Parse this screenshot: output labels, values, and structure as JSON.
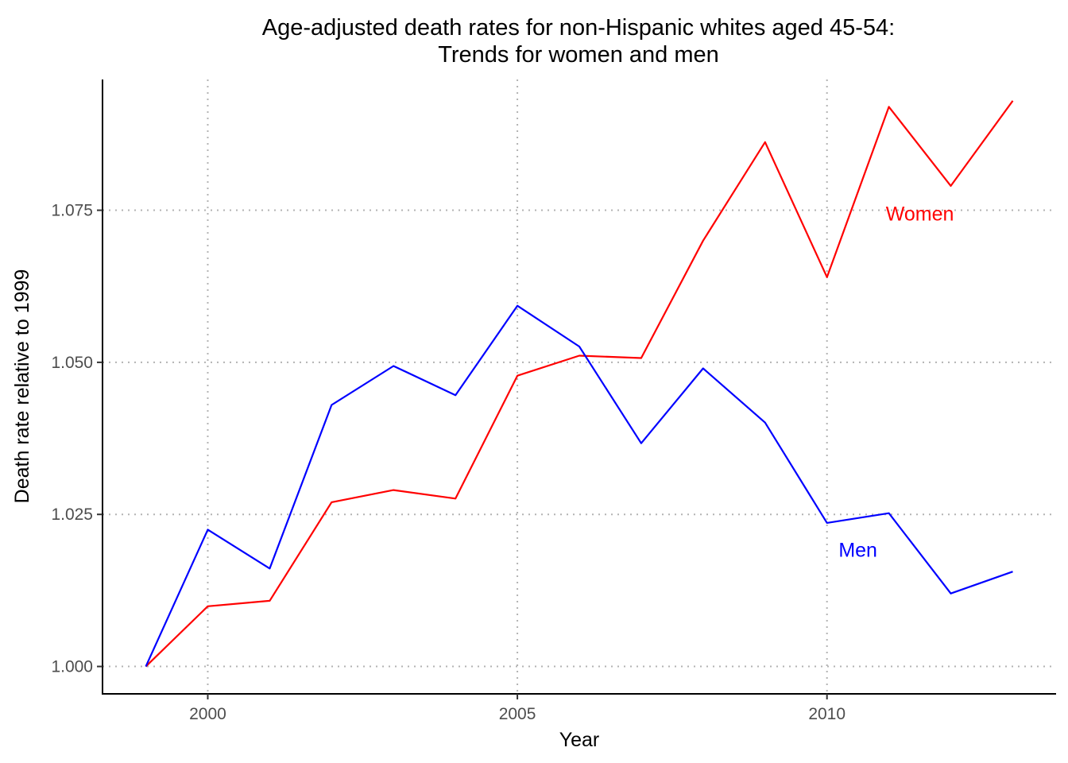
{
  "chart_data": {
    "type": "line",
    "title": "Age-adjusted death rates for non-Hispanic whites aged 45-54:",
    "subtitle": "Trends for women and men",
    "xlabel": "Year",
    "ylabel": "Death rate relative to 1999",
    "x": [
      1999,
      2000,
      2001,
      2002,
      2003,
      2004,
      2005,
      2006,
      2007,
      2008,
      2009,
      2010,
      2011,
      2012,
      2013
    ],
    "xlim": [
      1998.3,
      2013.7
    ],
    "ylim": [
      0.9955,
      1.0965
    ],
    "xticks": [
      2000,
      2005,
      2010
    ],
    "xtick_labels": [
      "2000",
      "2005",
      "2010"
    ],
    "yticks": [
      1.0,
      1.025,
      1.05,
      1.075
    ],
    "ytick_labels": [
      "1.000",
      "1.025",
      "1.050",
      "1.075"
    ],
    "grid": true,
    "legend": "none",
    "series": [
      {
        "name": "Women",
        "color": "#ff0000",
        "label_at": [
          2011.5,
          1.0745
        ],
        "values": [
          1.0,
          1.0099,
          1.0108,
          1.027,
          1.029,
          1.0276,
          1.0478,
          1.0511,
          1.0507,
          1.07,
          1.0862,
          1.064,
          1.092,
          1.079,
          1.093
        ]
      },
      {
        "name": "Men",
        "color": "#0000ff",
        "label_at": [
          2010.5,
          1.0192
        ],
        "values": [
          1.0,
          1.0225,
          1.0161,
          1.043,
          1.0494,
          1.0446,
          1.0593,
          1.0526,
          1.0367,
          1.049,
          1.0401,
          1.0236,
          1.0252,
          1.012,
          1.0156
        ]
      }
    ]
  }
}
